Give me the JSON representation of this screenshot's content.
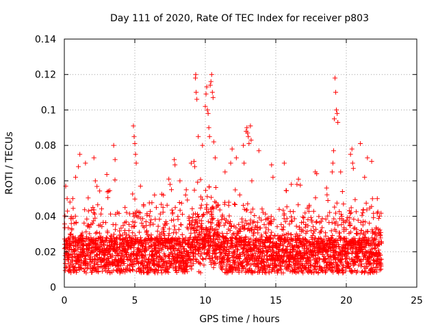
{
  "chart_data": {
    "type": "scatter",
    "title": "Day 111 of 2020, Rate Of TEC Index for receiver p803",
    "xlabel": "GPS time / hours",
    "ylabel": "ROTI / TECUs",
    "xlim": [
      0,
      25
    ],
    "ylim": [
      0,
      0.14
    ],
    "x_ticks": [
      0,
      5,
      10,
      15,
      20,
      25
    ],
    "x_tick_labels": [
      "0",
      "5",
      "10",
      "15",
      "20",
      "25"
    ],
    "y_ticks": [
      0,
      0.02,
      0.04,
      0.06,
      0.08,
      0.1,
      0.12,
      0.14
    ],
    "y_tick_labels": [
      "0",
      "0.02",
      "0.04",
      "0.06",
      "0.08",
      "0.1",
      "0.12",
      "0.14"
    ],
    "grid": true,
    "marker": "plus",
    "color": "#ff0000",
    "data_time_range_hours": [
      0,
      22.5
    ],
    "series": [
      {
        "name": "ROTI",
        "points": [
          [
            0.1,
            0.057
          ],
          [
            0.2,
            0.05
          ],
          [
            0.4,
            0.048
          ],
          [
            0.6,
            0.05
          ],
          [
            0.8,
            0.062
          ],
          [
            1.0,
            0.068
          ],
          [
            1.1,
            0.075
          ],
          [
            1.5,
            0.07
          ],
          [
            2.1,
            0.073
          ],
          [
            2.2,
            0.06
          ],
          [
            3.5,
            0.08
          ],
          [
            3.6,
            0.072
          ],
          [
            4.9,
            0.091
          ],
          [
            4.95,
            0.085
          ],
          [
            5.0,
            0.081
          ],
          [
            5.05,
            0.075
          ],
          [
            5.1,
            0.07
          ],
          [
            5.4,
            0.057
          ],
          [
            6.4,
            0.052
          ],
          [
            7.5,
            0.058
          ],
          [
            7.6,
            0.055
          ],
          [
            7.0,
            0.045
          ],
          [
            7.8,
            0.072
          ],
          [
            7.85,
            0.069
          ],
          [
            8.2,
            0.06
          ],
          [
            8.6,
            0.052
          ],
          [
            9.0,
            0.07
          ],
          [
            9.2,
            0.071
          ],
          [
            9.25,
            0.068
          ],
          [
            9.3,
            0.118
          ],
          [
            9.32,
            0.12
          ],
          [
            9.35,
            0.11
          ],
          [
            9.4,
            0.106
          ],
          [
            9.5,
            0.085
          ],
          [
            9.8,
            0.08
          ],
          [
            10.0,
            0.102
          ],
          [
            10.05,
            0.109
          ],
          [
            10.1,
            0.113
          ],
          [
            10.15,
            0.1
          ],
          [
            10.2,
            0.098
          ],
          [
            10.25,
            0.09
          ],
          [
            10.3,
            0.085
          ],
          [
            10.35,
            0.114
          ],
          [
            10.4,
            0.116
          ],
          [
            10.45,
            0.12
          ],
          [
            10.5,
            0.11
          ],
          [
            10.55,
            0.107
          ],
          [
            10.6,
            0.082
          ],
          [
            10.7,
            0.073
          ],
          [
            11.4,
            0.065
          ],
          [
            11.8,
            0.07
          ],
          [
            11.9,
            0.078
          ],
          [
            12.2,
            0.073
          ],
          [
            12.7,
            0.08
          ],
          [
            12.75,
            0.07
          ],
          [
            12.9,
            0.088
          ],
          [
            12.95,
            0.09
          ],
          [
            13.0,
            0.087
          ],
          [
            13.05,
            0.085
          ],
          [
            13.1,
            0.081
          ],
          [
            13.2,
            0.091
          ],
          [
            13.25,
            0.083
          ],
          [
            13.3,
            0.06
          ],
          [
            13.8,
            0.077
          ],
          [
            14.7,
            0.069
          ],
          [
            14.8,
            0.062
          ],
          [
            15.6,
            0.07
          ],
          [
            16.1,
            0.058
          ],
          [
            16.5,
            0.058
          ],
          [
            17.8,
            0.065
          ],
          [
            17.9,
            0.064
          ],
          [
            18.6,
            0.056
          ],
          [
            19.0,
            0.065
          ],
          [
            19.05,
            0.07
          ],
          [
            19.1,
            0.077
          ],
          [
            19.15,
            0.095
          ],
          [
            19.2,
            0.118
          ],
          [
            19.25,
            0.11
          ],
          [
            19.3,
            0.1
          ],
          [
            19.35,
            0.098
          ],
          [
            19.4,
            0.093
          ],
          [
            19.6,
            0.065
          ],
          [
            20.3,
            0.075
          ],
          [
            20.4,
            0.078
          ],
          [
            20.45,
            0.07
          ],
          [
            20.5,
            0.067
          ],
          [
            21.0,
            0.081
          ],
          [
            21.3,
            0.062
          ],
          [
            21.5,
            0.073
          ],
          [
            21.8,
            0.071
          ],
          [
            22.2,
            0.05
          ]
        ]
      }
    ]
  }
}
